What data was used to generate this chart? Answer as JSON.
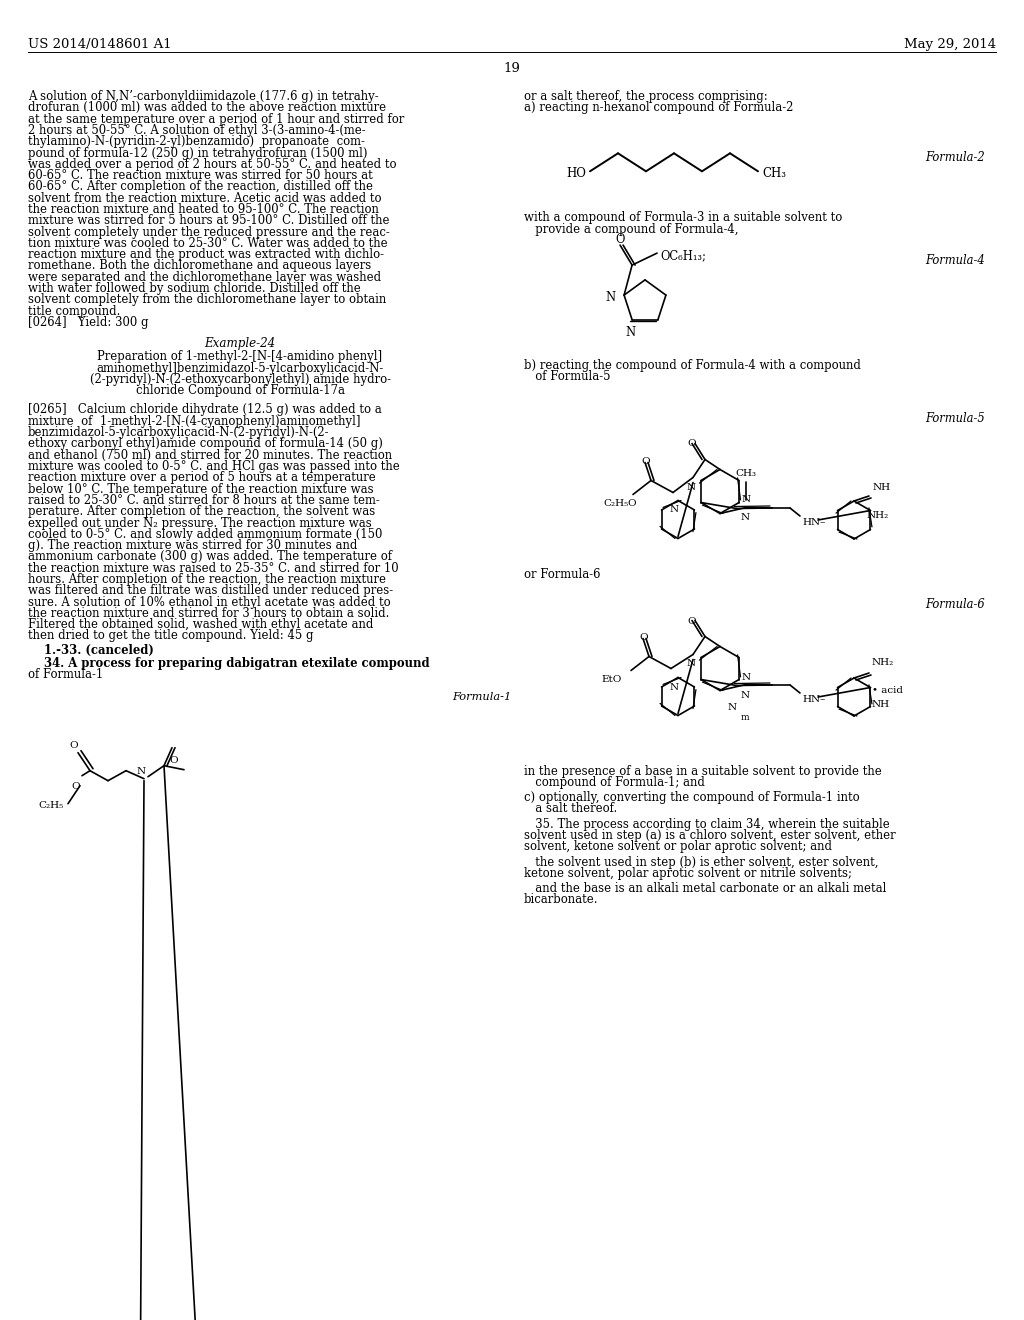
{
  "bg_color": "#ffffff",
  "text_color": "#000000",
  "header_left": "US 2014/0148601 A1",
  "header_right": "May 29, 2014",
  "page_number": "19",
  "left_para_lines": [
    "A solution of N,N’-carbonyldiimidazole (177.6 g) in tetrahy-",
    "drofuran (1000 ml) was added to the above reaction mixture",
    "at the same temperature over a period of 1 hour and stirred for",
    "2 hours at 50-55° C. A solution of ethyl 3-(3-amino-4-(me-",
    "thylamino)-N-(pyridin-2-yl)benzamido)  propanoate  com-",
    "pound of formula-12 (250 g) in tetrahydrofuran (1500 ml)",
    "was added over a period of 2 hours at 50-55° C. and heated to",
    "60-65° C. The reaction mixture was stirred for 50 hours at",
    "60-65° C. After completion of the reaction, distilled off the",
    "solvent from the reaction mixture. Acetic acid was added to",
    "the reaction mixture and heated to 95-100° C. The reaction",
    "mixture was stirred for 5 hours at 95-100° C. Distilled off the",
    "solvent completely under the reduced pressure and the reac-",
    "tion mixture was cooled to 25-30° C. Water was added to the",
    "reaction mixture and the product was extracted with dichlo-",
    "romethane. Both the dichloromethane and aqueous layers",
    "were separated and the dichloromethane layer was washed",
    "with water followed by sodium chloride. Distilled off the",
    "solvent completely from the dichloromethane layer to obtain",
    "title compound.",
    "[0264]   Yield: 300 g"
  ],
  "example24_title": "Example-24",
  "example24_sub": [
    "Preparation of 1-methyl-2-[N-[4-amidino phenyl]",
    "aminomethyl]benzimidazol-5-ylcarboxylicacid-N-",
    "(2-pyridyl)-N-(2-ethoxycarbonylethyl) amide hydro-",
    "chloride Compound of Formula-17a"
  ],
  "para0265_lines": [
    "[0265]   Calcium chloride dihydrate (12.5 g) was added to a",
    "mixture  of  1-methyl-2-[N-(4-cyanophenyl)aminomethyl]",
    "benzimidazol-5-ylcarboxylicacid-N-(2-pyridyl)-N-(2-",
    "ethoxy carbonyl ethyl)amide compound of formula-14 (50 g)",
    "and ethanol (750 ml) and stirred for 20 minutes. The reaction",
    "mixture was cooled to 0-5° C. and HCl gas was passed into the",
    "reaction mixture over a period of 5 hours at a temperature",
    "below 10° C. The temperature of the reaction mixture was",
    "raised to 25-30° C. and stirred for 8 hours at the same tem-",
    "perature. After completion of the reaction, the solvent was",
    "expelled out under N₂ pressure. The reaction mixture was",
    "cooled to 0-5° C. and slowly added ammonium formate (150",
    "g). The reaction mixture was stirred for 30 minutes and",
    "ammonium carbonate (300 g) was added. The temperature of",
    "the reaction mixture was raised to 25-35° C. and stirred for 10",
    "hours. After completion of the reaction, the reaction mixture",
    "was filtered and the filtrate was distilled under reduced pres-",
    "sure. A solution of 10% ethanol in ethyl acetate was added to",
    "the reaction mixture and stirred for 3 hours to obtain a solid.",
    "Filtered the obtained solid, washed with ethyl acetate and",
    "then dried to get the title compound. Yield: 45 g"
  ],
  "claim_133": "    1.-33. (canceled)",
  "claim_34a": "    34. A process for preparing dabigatran etexilate compound",
  "claim_34b": "of Formula-1",
  "right_line1": "or a salt thereof, the process comprising:",
  "right_line2": "a) reacting n-hexanol compound of Formula-2",
  "formula2_label": "Formula-2",
  "formula4_label": "Formula-4",
  "formula5_label": "Formula-5",
  "formula6_label": "Formula-6",
  "formula1_label": "Formula-1",
  "with_line1": "with a compound of Formula-3 in a suitable solvent to",
  "with_line2": "   provide a compound of Formula-4,",
  "reacting_b1": "b) reacting the compound of Formula-4 with a compound",
  "reacting_b2": "   of Formula-5",
  "or_formula6": "or Formula-6",
  "in_presence1": "in the presence of a base in a suitable solvent to provide the",
  "in_presence2": "   compound of Formula-1; and",
  "optionally1": "c) optionally, converting the compound of Formula-1 into",
  "optionally2": "   a salt thereof.",
  "claim35_lines": [
    "   35. The process according to claim 34, wherein the suitable",
    "solvent used in step (a) is a chloro solvent, ester solvent, ether",
    "solvent, ketone solvent or polar aprotic solvent; and"
  ],
  "claim35b_lines": [
    "   the solvent used in step (b) is ether solvent, ester solvent,",
    "ketone solvent, polar aprotic solvent or nitrile solvents;"
  ],
  "claim35c_lines": [
    "   and the base is an alkali metal carbonate or an alkali metal",
    "bicarbonate."
  ]
}
